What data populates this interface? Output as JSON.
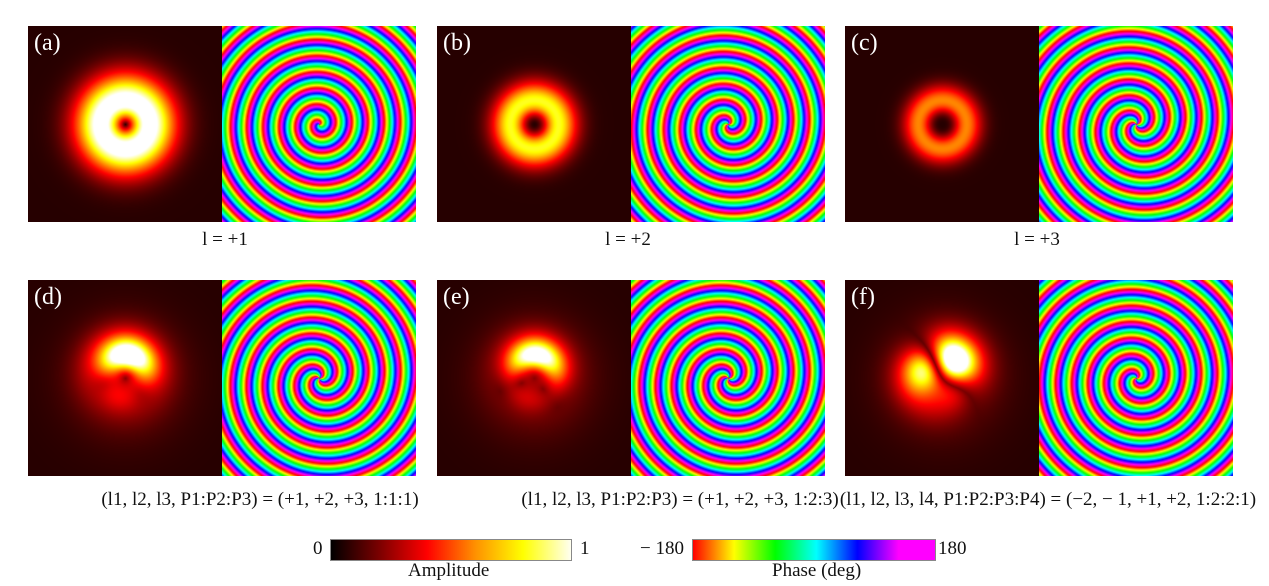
{
  "panels": [
    {
      "label": "(a)",
      "charges": [
        1
      ],
      "weights": [
        1
      ]
    },
    {
      "label": "(b)",
      "charges": [
        2
      ],
      "weights": [
        1
      ]
    },
    {
      "label": "(c)",
      "charges": [
        3
      ],
      "weights": [
        1
      ]
    },
    {
      "label": "(d)",
      "charges": [
        1,
        2,
        3
      ],
      "weights": [
        1,
        1,
        1
      ]
    },
    {
      "label": "(e)",
      "charges": [
        1,
        2,
        3
      ],
      "weights": [
        1,
        2,
        3
      ]
    },
    {
      "label": "(f)",
      "charges": [
        -2,
        -1,
        1,
        2
      ],
      "weights": [
        1,
        2,
        2,
        1
      ]
    }
  ],
  "captions": [
    "l = +1",
    "l = +2",
    "l = +3",
    "(l1, l2, l3, P1:P2:P3) = (+1, +2, +3, 1:1:1)",
    "(l1, l2, l3, P1:P2:P3) = (+1, +2, +3, 1:2:3)",
    "(l1, l2, l3, l4, P1:P2:P3:P4) = (−2, − 1, +1, +2, 1:2:2:1)"
  ],
  "amplitude_bar": {
    "min": "0",
    "max": "1",
    "title": "Amplitude",
    "colors": [
      "#000000",
      "#ff0000",
      "#ffff00",
      "#ffffff"
    ]
  },
  "phase_bar": {
    "min": "− 180",
    "max": "180",
    "title": "Phase (deg)",
    "colors": [
      "#ff0000",
      "#ffff00",
      "#00ff00",
      "#00ffff",
      "#0000ff",
      "#ff00ff"
    ]
  }
}
